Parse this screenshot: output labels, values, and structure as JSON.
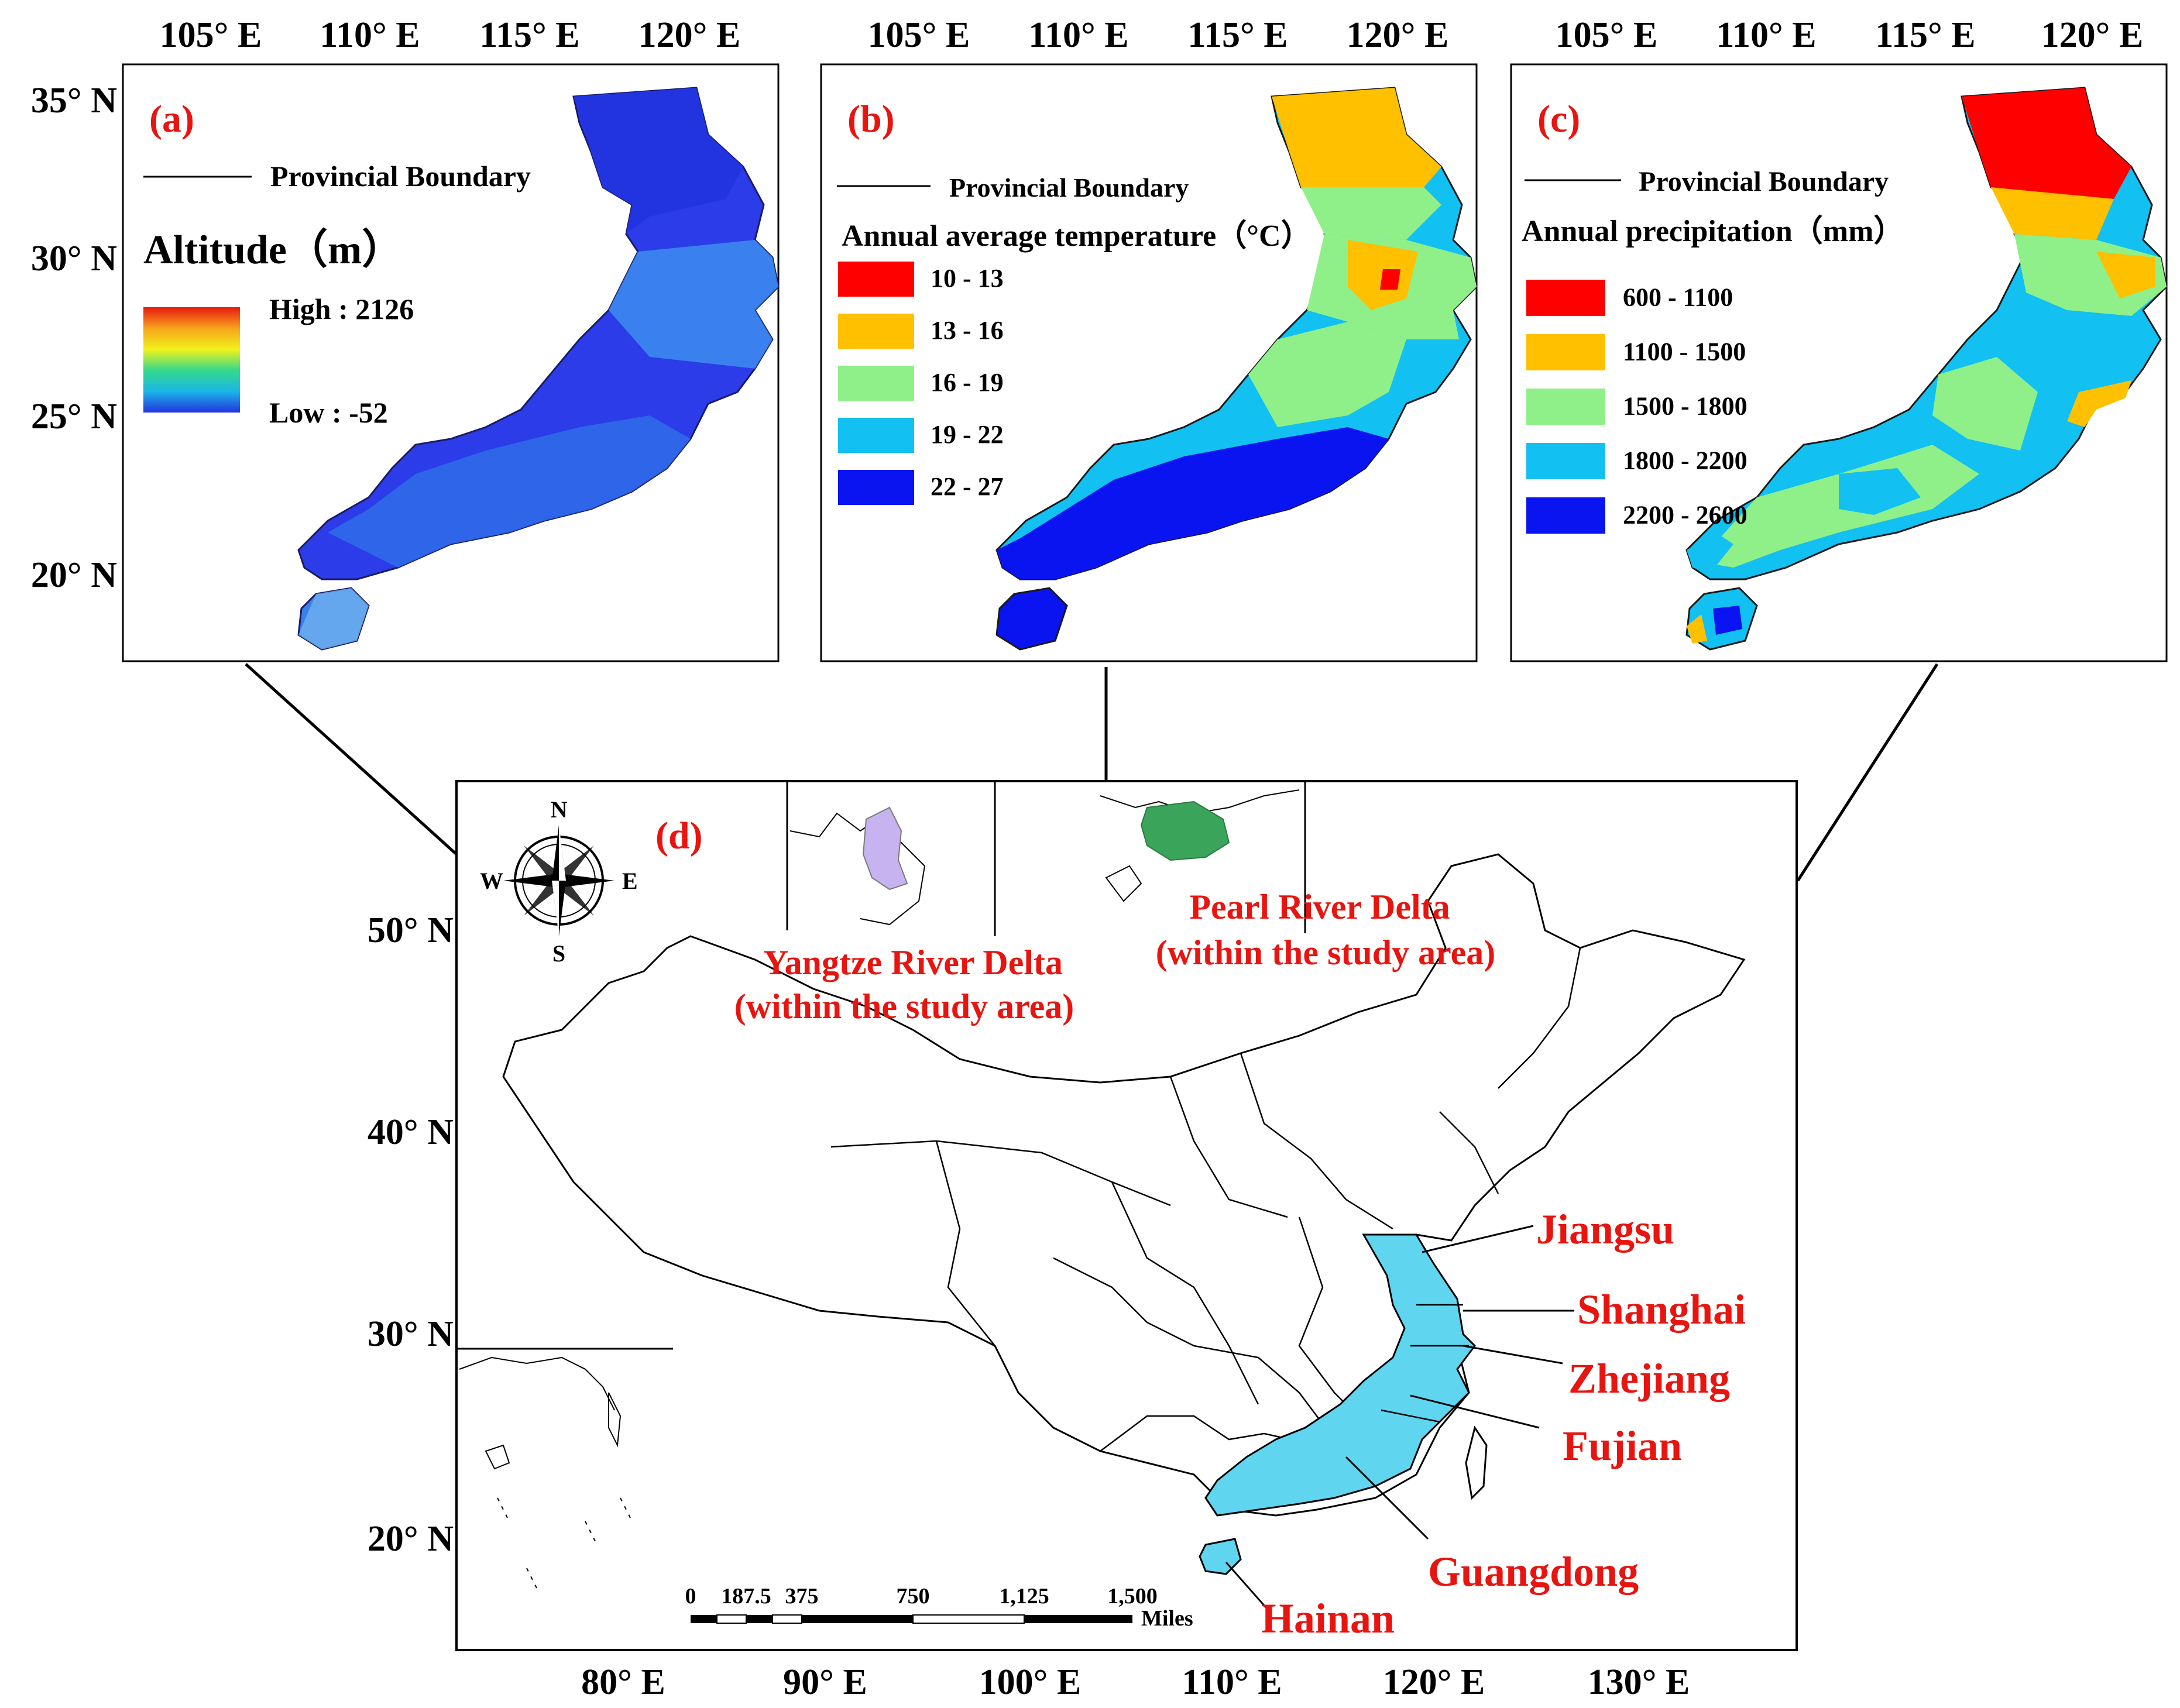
{
  "panels": {
    "a": {
      "letter": "(a)",
      "boundary_label": "Provincial Boundary",
      "legend_title": "Altitude（m）",
      "high_label": "High : 2126",
      "low_label": "Low : -52",
      "gradient": [
        "#e81a0e",
        "#f7a21b",
        "#f2f21a",
        "#35d98a",
        "#1ab6e8",
        "#2532e0"
      ]
    },
    "b": {
      "letter": "(b)",
      "boundary_label": "Provincial Boundary",
      "legend_title": "Annual average temperature（°C）",
      "classes": [
        {
          "label": "10 - 13",
          "color": "#ff0000"
        },
        {
          "label": "13 - 16",
          "color": "#ffc000"
        },
        {
          "label": "16 - 19",
          "color": "#8ff08a"
        },
        {
          "label": "19 - 22",
          "color": "#12c0f2"
        },
        {
          "label": "22 - 27",
          "color": "#0a14f0"
        }
      ]
    },
    "c": {
      "letter": "(c)",
      "boundary_label": "Provincial Boundary",
      "legend_title": "Annual precipitation（mm）",
      "classes": [
        {
          "label": "600 - 1100",
          "color": "#ff0000"
        },
        {
          "label": "1100 - 1500",
          "color": "#ffc000"
        },
        {
          "label": "1500 - 1800",
          "color": "#8ff08a"
        },
        {
          "label": "1800 - 2200",
          "color": "#12c0f2"
        },
        {
          "label": "2200 - 2600",
          "color": "#0a14f0"
        }
      ]
    },
    "d": {
      "letter": "(d)",
      "compass": {
        "n": "N",
        "s": "S",
        "e": "E",
        "w": "W"
      },
      "yrd_label_1": "Yangtze River Delta",
      "yrd_label_2": "(within the study area)",
      "prd_label_1": "Pearl River Delta",
      "prd_label_2": "(within the study area)",
      "scale_ticks": [
        "0",
        "187.5",
        "375",
        "750",
        "1,125",
        "1,500"
      ],
      "scale_unit": "Miles",
      "provinces": {
        "jiangsu": "Jiangsu",
        "shanghai": "Shanghai",
        "zhejiang": "Zhejiang",
        "fujian": "Fujian",
        "guangdong": "Guangdong",
        "hainan": "Hainan"
      },
      "study_color": "#5fd5f0",
      "yrd_color": "#c6b3f0",
      "prd_color": "#3aa55a"
    }
  },
  "axes": {
    "top_lon": [
      "105° E",
      "110° E",
      "115° E",
      "120° E"
    ],
    "left_lat_top": [
      "35° N",
      "30° N",
      "25° N",
      "20° N"
    ],
    "left_lat_d": [
      "50° N",
      "40° N",
      "30° N",
      "20° N"
    ],
    "bottom_lon_d": [
      "80° E",
      "90° E",
      "100° E",
      "110° E",
      "120° E",
      "130° E"
    ]
  },
  "colors": {
    "label_red": "#e8140f"
  }
}
